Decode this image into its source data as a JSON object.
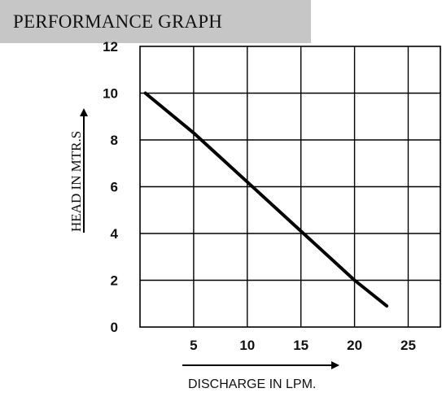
{
  "header": {
    "title": "PERFORMANCE GRAPH"
  },
  "chart_data": {
    "type": "line",
    "title": "PERFORMANCE GRAPH",
    "xlabel": "DISCHARGE IN LPM.",
    "ylabel": "HEAD IN MTR.S",
    "x_ticks": [
      5,
      10,
      15,
      20,
      25
    ],
    "y_ticks": [
      0,
      2,
      4,
      6,
      8,
      10,
      12
    ],
    "xlim": [
      0,
      28
    ],
    "ylim": [
      0,
      12
    ],
    "grid": true,
    "series": [
      {
        "x": [
          0.5,
          5,
          10,
          15,
          20,
          23
        ],
        "y": [
          10,
          8.3,
          6.2,
          4.1,
          2.0,
          0.9
        ]
      }
    ],
    "line_color": "#000000",
    "grid_color": "#000000"
  }
}
